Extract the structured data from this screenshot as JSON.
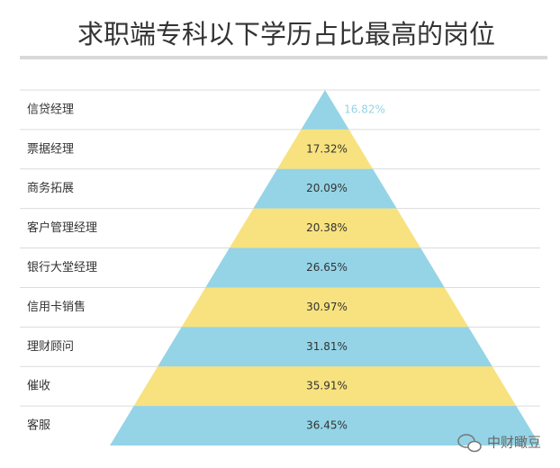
{
  "chart_data": {
    "type": "pyramid",
    "title": "求职端专科以下学历占比最高的岗位",
    "categories": [
      "信贷经理",
      "票据经理",
      "商务拓展",
      "客户管理经理",
      "银行大堂经理",
      "信用卡销售",
      "理财顾问",
      "催收",
      "客服"
    ],
    "values": [
      16.82,
      17.32,
      20.09,
      20.38,
      26.65,
      30.97,
      31.81,
      35.91,
      36.45
    ],
    "value_labels": [
      "16.82%",
      "17.32%",
      "20.09%",
      "20.38%",
      "26.65%",
      "30.97%",
      "31.81%",
      "35.91%",
      "36.45%"
    ],
    "colors": [
      "#94d4e6",
      "#f7e27f"
    ],
    "watermark": "中财瞰豆"
  }
}
